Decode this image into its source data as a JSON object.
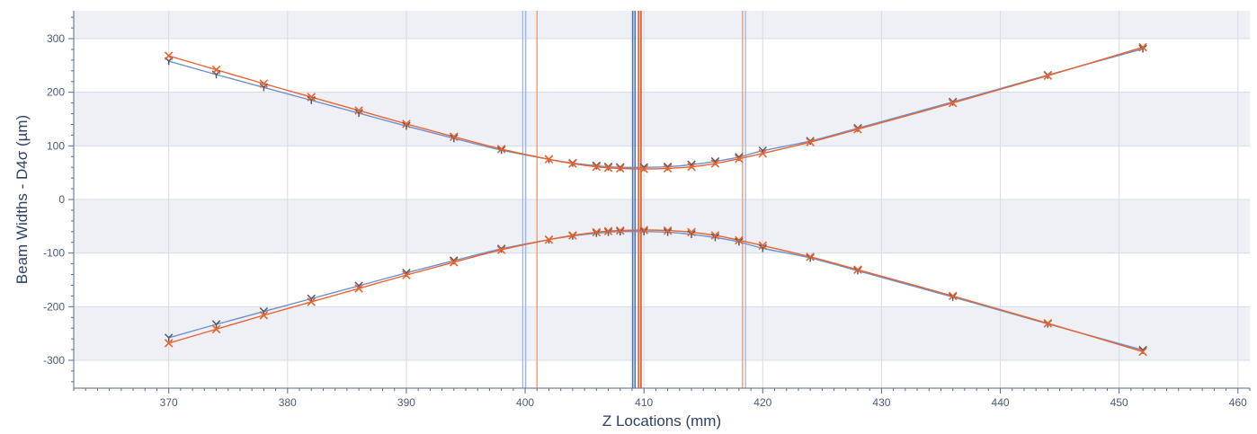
{
  "chart_data": {
    "type": "line",
    "xlabel": "Z Locations (mm)",
    "ylabel": "Beam Widths - D4σ (µm)",
    "xlim": [
      362,
      461
    ],
    "ylim": [
      -352,
      352
    ],
    "xticks": [
      370,
      380,
      390,
      400,
      410,
      420,
      430,
      440,
      450,
      460
    ],
    "yticks": [
      -300,
      -200,
      -100,
      0,
      100,
      200,
      300
    ],
    "grid": true,
    "legend": "none",
    "colors": {
      "blue": "#6d8fcf",
      "orange": "#e8632d",
      "marker_dark": "#505a6a"
    },
    "series": [
      {
        "color": "#6d8fcf",
        "marker": "+",
        "x": [
          370,
          374,
          378,
          382,
          386,
          390,
          394,
          398,
          402,
          404,
          406,
          407,
          408,
          410,
          412,
          414,
          416,
          418,
          420,
          424,
          428,
          436,
          444,
          452
        ],
        "y": [
          258,
          233,
          209,
          185,
          161,
          137,
          114,
          92,
          75,
          68,
          63,
          61,
          60,
          60,
          61,
          65,
          71,
          79,
          91,
          109,
          133,
          182,
          232,
          281
        ]
      },
      {
        "color": "#e8632d",
        "marker": "x",
        "x": [
          370,
          374,
          378,
          382,
          386,
          390,
          394,
          398,
          402,
          404,
          406,
          407,
          408,
          410,
          412,
          414,
          416,
          418,
          420,
          424,
          428,
          436,
          444,
          452
        ],
        "y": [
          268,
          242,
          216,
          191,
          166,
          141,
          117,
          94,
          75,
          67,
          61,
          59,
          58,
          57,
          58,
          61,
          67,
          76,
          86,
          107,
          131,
          180,
          231,
          284
        ]
      },
      {
        "color": "#6d8fcf",
        "marker": "+",
        "x": [
          370,
          374,
          378,
          382,
          386,
          390,
          394,
          398,
          402,
          404,
          406,
          407,
          408,
          410,
          412,
          414,
          416,
          418,
          420,
          424,
          428,
          436,
          444,
          452
        ],
        "y": [
          -258,
          -233,
          -209,
          -185,
          -161,
          -137,
          -114,
          -92,
          -75,
          -68,
          -63,
          -61,
          -60,
          -60,
          -61,
          -65,
          -71,
          -79,
          -91,
          -109,
          -133,
          -182,
          -232,
          -281
        ]
      },
      {
        "color": "#e8632d",
        "marker": "x",
        "x": [
          370,
          374,
          378,
          382,
          386,
          390,
          394,
          398,
          402,
          404,
          406,
          407,
          408,
          410,
          412,
          414,
          416,
          418,
          420,
          424,
          428,
          436,
          444,
          452
        ],
        "y": [
          -268,
          -242,
          -216,
          -191,
          -166,
          -141,
          -117,
          -94,
          -75,
          -67,
          -61,
          -59,
          -58,
          -57,
          -58,
          -61,
          -67,
          -76,
          -86,
          -107,
          -131,
          -180,
          -231,
          -284
        ]
      }
    ],
    "vertical_lines": [
      {
        "x": 399.8,
        "color": "#9bb8e8",
        "width": 1.3
      },
      {
        "x": 400.05,
        "color": "#9bb8e8",
        "width": 1.3
      },
      {
        "x": 401.0,
        "color": "#f0956a",
        "width": 1.3
      },
      {
        "x": 409.05,
        "color": "#4a74b8",
        "width": 1.6
      },
      {
        "x": 409.25,
        "color": "#4a74b8",
        "width": 1.6
      },
      {
        "x": 409.55,
        "color": "#e8632d",
        "width": 1.8
      },
      {
        "x": 409.75,
        "color": "#e8632d",
        "width": 1.8
      },
      {
        "x": 418.3,
        "color": "#f0956a",
        "width": 1.3
      },
      {
        "x": 418.55,
        "color": "#9bb8e8",
        "width": 1.3
      }
    ]
  }
}
